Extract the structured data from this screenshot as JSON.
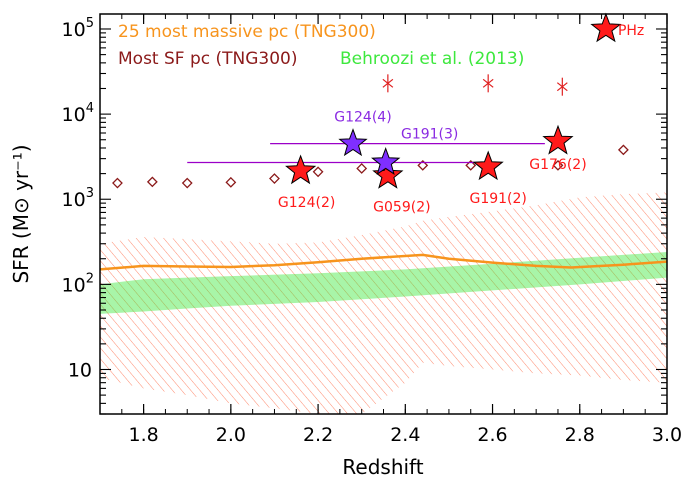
{
  "chart_data": {
    "type": "scatter",
    "xlabel": "Redshift",
    "ylabel": "SFR (M⊙ yr⁻¹)",
    "xlim": [
      1.7,
      3.0
    ],
    "ylim": [
      3,
      150000
    ],
    "yscale": "log",
    "grid": false,
    "x_ticks": [
      "1.8",
      "2.0",
      "2.2",
      "2.4",
      "2.6",
      "2.8",
      "3.0"
    ],
    "y_ticks": [
      {
        "value": 10,
        "label": "10"
      },
      {
        "value": 100,
        "label": "10",
        "exp": "2"
      },
      {
        "value": 1000,
        "label": "10",
        "exp": "3"
      },
      {
        "value": 10000,
        "label": "10",
        "exp": "4"
      },
      {
        "value": 100000,
        "label": "10",
        "exp": "5"
      }
    ],
    "legend": [
      {
        "label": "25 most massive pc (TNG300)",
        "color": "#f7941d"
      },
      {
        "label": "Most SF pc (TNG300)",
        "color": "#8b1a1a"
      },
      {
        "label": "Behroozi et al. (2013)",
        "color": "#3ee83e"
      }
    ],
    "colors": {
      "tng_massive": "#f7941d",
      "tng_sf": "#8b1a1a",
      "behroozi": "#3ee83e",
      "red_star": "#ff1a1a",
      "purple_star": "#7f2fff",
      "purple_line": "#9b00c8",
      "red_label": "#ff1a1a",
      "purple_label": "#8a2be2"
    },
    "massive_median": {
      "x": [
        1.7,
        1.8,
        1.9,
        2.0,
        2.1,
        2.2,
        2.3,
        2.44,
        2.5,
        2.6,
        2.7,
        2.78,
        2.9,
        3.0
      ],
      "y": [
        150,
        165,
        162,
        160,
        168,
        182,
        200,
        222,
        200,
        180,
        165,
        158,
        170,
        185
      ]
    },
    "massive_band": {
      "x": [
        1.7,
        1.8,
        1.9,
        2.0,
        2.1,
        2.2,
        2.3,
        2.4,
        2.44,
        2.5,
        2.6,
        2.7,
        2.8,
        2.9,
        3.0
      ],
      "upper": [
        300,
        360,
        340,
        320,
        300,
        310,
        380,
        480,
        560,
        620,
        720,
        850,
        1050,
        1150,
        1200
      ],
      "lower": [
        8,
        6,
        5,
        4,
        3.5,
        3,
        3,
        7,
        12,
        11,
        10,
        9,
        8.5,
        7.5,
        7
      ]
    },
    "behroozi_band": {
      "x": [
        1.7,
        1.8,
        1.9,
        2.0,
        2.2,
        2.4,
        2.6,
        2.8,
        3.0
      ],
      "upper": [
        100,
        115,
        120,
        125,
        135,
        150,
        175,
        205,
        240
      ],
      "lower": [
        45,
        48,
        52,
        56,
        62,
        72,
        85,
        100,
        120
      ]
    },
    "most_sf": {
      "x": [
        1.74,
        1.82,
        1.9,
        2.0,
        2.1,
        2.2,
        2.3,
        2.36,
        2.44,
        2.55,
        2.75,
        2.9
      ],
      "y": [
        1550,
        1600,
        1550,
        1580,
        1750,
        2100,
        2300,
        2000,
        2500,
        2500,
        2500,
        3800
      ]
    },
    "asterisks": {
      "x": [
        2.36,
        2.59,
        2.76
      ],
      "y": [
        23000,
        23000,
        21000
      ]
    },
    "red_stars": [
      {
        "x": 2.16,
        "y": 2150,
        "label": "G124(2)"
      },
      {
        "x": 2.36,
        "y": 1900,
        "label": "G059(2)"
      },
      {
        "x": 2.59,
        "y": 2400,
        "label": "G191(2)"
      },
      {
        "x": 2.75,
        "y": 4800,
        "label": "G176(2)"
      },
      {
        "x": 2.86,
        "y": 100000,
        "label": "PHz"
      }
    ],
    "purple_stars": [
      {
        "x": 2.28,
        "y": 4500,
        "label": "G124(4)",
        "xerr": [
          2.09,
          2.72
        ]
      },
      {
        "x": 2.355,
        "y": 2700,
        "label": "G191(3)",
        "xerr": [
          1.9,
          2.61
        ]
      }
    ]
  }
}
